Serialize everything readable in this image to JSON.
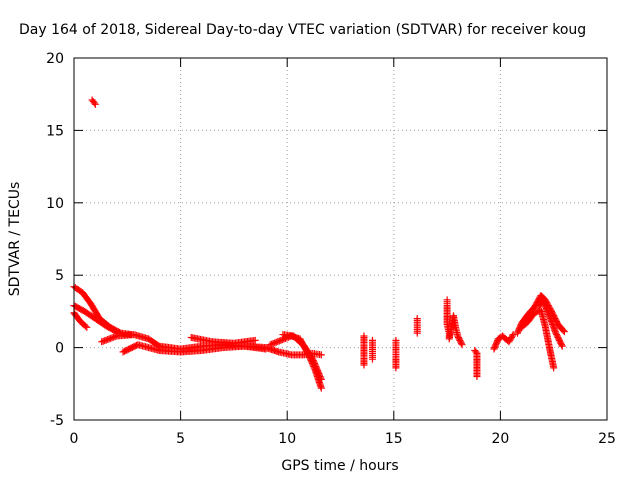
{
  "chart_data": {
    "type": "scatter",
    "title": "Day 164 of 2018, Sidereal Day-to-day VTEC variation (SDTVAR) for receiver koug",
    "xlabel": "GPS time / hours",
    "ylabel": "SDTVAR / TECUs",
    "xlim": [
      0,
      25
    ],
    "ylim": [
      -5,
      20
    ],
    "xticks": [
      0,
      5,
      10,
      15,
      20,
      25
    ],
    "yticks": [
      -5,
      0,
      5,
      10,
      15,
      20
    ],
    "grid": true,
    "marker": "+",
    "colors": {
      "series": "#ff0000",
      "axes": "#000000",
      "grid": "#a0a0a0"
    },
    "series": [
      {
        "name": "SDTVAR",
        "segments": [
          {
            "x": [
              0.85,
              1.0
            ],
            "y": [
              17.1,
              16.8
            ]
          },
          {
            "x": [
              0.0,
              0.4,
              0.8,
              1.2,
              1.7,
              2.2,
              2.7
            ],
            "y": [
              4.2,
              3.8,
              3.0,
              2.0,
              1.4,
              1.0,
              0.9
            ]
          },
          {
            "x": [
              0.0,
              0.5,
              1.0,
              1.5,
              2.0
            ],
            "y": [
              2.9,
              2.5,
              2.0,
              1.5,
              1.1
            ]
          },
          {
            "x": [
              0.0,
              0.3,
              0.6
            ],
            "y": [
              2.4,
              1.8,
              1.4
            ]
          },
          {
            "x": [
              1.3,
              2.0,
              2.8,
              3.5,
              4.0,
              5.0,
              6.0,
              7.0,
              8.0,
              9.0,
              9.6,
              10.2,
              10.8,
              11.2,
              11.6
            ],
            "y": [
              0.4,
              0.8,
              0.9,
              0.6,
              0.1,
              -0.1,
              0.1,
              0.2,
              0.1,
              0.0,
              -0.3,
              -0.5,
              -0.5,
              -0.4,
              -0.5
            ]
          },
          {
            "x": [
              2.3,
              3.0,
              3.5,
              4.0,
              5.0,
              6.0,
              7.0,
              8.0,
              9.0
            ],
            "y": [
              -0.3,
              0.2,
              0.0,
              -0.2,
              -0.3,
              -0.2,
              0.0,
              0.1,
              -0.1
            ]
          },
          {
            "x": [
              5.5,
              6.5,
              7.5,
              8.5
            ],
            "y": [
              0.7,
              0.4,
              0.3,
              0.5
            ]
          },
          {
            "x": [
              9.2,
              9.7,
              10.2,
              10.6,
              11.0,
              11.3,
              11.6
            ],
            "y": [
              0.2,
              0.5,
              0.8,
              0.6,
              -0.5,
              -1.5,
              -2.8
            ]
          },
          {
            "x": [
              9.8,
              10.3,
              10.8,
              11.2,
              11.6
            ],
            "y": [
              0.9,
              0.8,
              0.1,
              -0.8,
              -2.2
            ]
          },
          {
            "x": [
              13.6,
              13.6,
              13.6
            ],
            "y": [
              0.8,
              -0.2,
              -1.2
            ]
          },
          {
            "x": [
              14.0,
              14.0,
              14.0,
              14.0
            ],
            "y": [
              0.5,
              0.0,
              -0.4,
              -0.8
            ]
          },
          {
            "x": [
              15.1,
              15.1,
              15.1,
              15.1
            ],
            "y": [
              0.5,
              0.0,
              -0.6,
              -1.4
            ]
          },
          {
            "x": [
              16.1,
              16.1,
              16.1
            ],
            "y": [
              2.0,
              1.5,
              1.0
            ]
          },
          {
            "x": [
              17.5,
              17.5,
              17.5,
              17.6,
              17.6,
              17.8,
              17.9,
              18.0,
              18.2
            ],
            "y": [
              3.3,
              2.9,
              1.6,
              1.0,
              0.6,
              2.2,
              1.4,
              0.8,
              0.2
            ]
          },
          {
            "x": [
              18.8,
              18.9,
              18.9,
              18.9
            ],
            "y": [
              -0.2,
              -0.4,
              -1.9,
              -2.0
            ]
          },
          {
            "x": [
              19.7,
              19.9,
              20.1,
              20.4,
              20.6
            ],
            "y": [
              -0.1,
              0.6,
              0.8,
              0.4,
              0.9
            ]
          },
          {
            "x": [
              20.8,
              21.0,
              21.3,
              21.6,
              21.9,
              22.1,
              22.4,
              22.7,
              23.0
            ],
            "y": [
              1.0,
              1.7,
              2.3,
              2.8,
              3.6,
              3.3,
              2.5,
              1.6,
              1.1
            ]
          },
          {
            "x": [
              21.0,
              21.3,
              21.6,
              21.9,
              22.1,
              22.3,
              22.5
            ],
            "y": [
              1.4,
              1.8,
              2.4,
              2.6,
              1.5,
              0.0,
              -1.4
            ]
          },
          {
            "x": [
              21.8,
              22.0,
              22.3,
              22.6,
              22.9
            ],
            "y": [
              2.9,
              3.2,
              2.2,
              1.0,
              0.1
            ]
          }
        ]
      }
    ]
  }
}
